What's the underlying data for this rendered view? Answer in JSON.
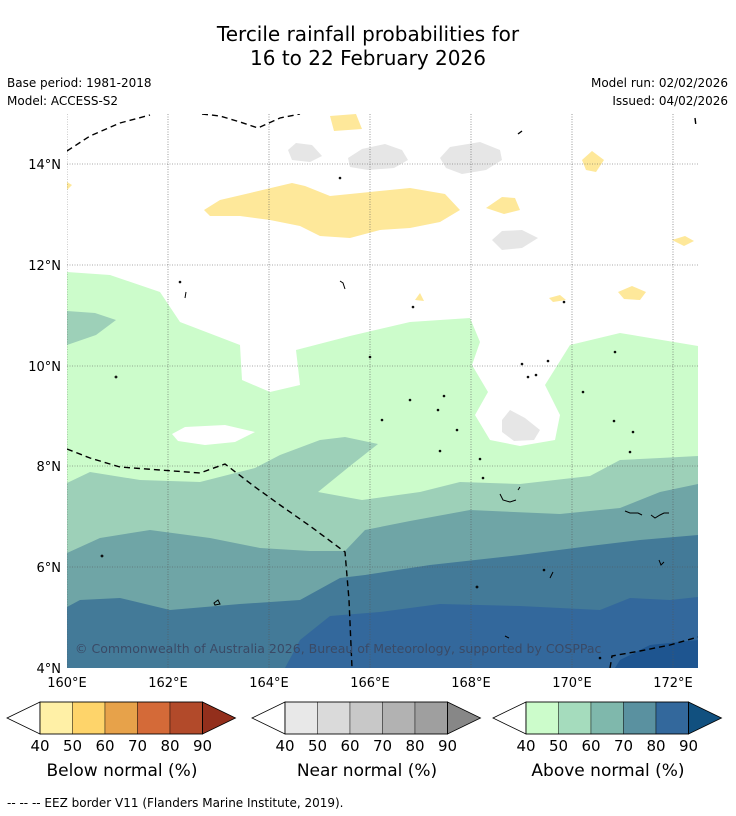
{
  "title": {
    "line1": "Tercile rainfall probabilities for",
    "line2": "16 to 22 February 2026"
  },
  "meta": {
    "base_period": "Base period: 1981-2018",
    "model": "Model: ACCESS-S2",
    "model_run": "Model run: 02/02/2026",
    "issued": "Issued: 04/02/2026"
  },
  "map": {
    "lat_labels": [
      "14°N",
      "12°N",
      "10°N",
      "8°N",
      "6°N",
      "4°N"
    ],
    "lon_labels": [
      "160°E",
      "162°E",
      "164°E",
      "166°E",
      "168°E",
      "170°E",
      "172°E"
    ],
    "copyright": "© Commonwealth of Australia 2026, Bureau of Meteorology, supported by COSPPac"
  },
  "legends": {
    "below": {
      "label": "Below normal (%)",
      "ticks": [
        "40",
        "50",
        "60",
        "70",
        "80",
        "90"
      ],
      "colors": [
        "#ffffff",
        "#fff0a6",
        "#fed46a",
        "#e7a24a",
        "#d46a38",
        "#b24a2a",
        "#932f1c"
      ]
    },
    "near": {
      "label": "Near normal (%)",
      "ticks": [
        "40",
        "50",
        "60",
        "70",
        "80",
        "90"
      ],
      "colors": [
        "#ffffff",
        "#e8e8e8",
        "#dadada",
        "#c8c8c8",
        "#b2b2b2",
        "#9f9f9f",
        "#878787"
      ]
    },
    "above": {
      "label": "Above normal (%)",
      "ticks": [
        "40",
        "50",
        "60",
        "70",
        "80",
        "90"
      ],
      "colors": [
        "#ffffff",
        "#ccfccb",
        "#a5dcbd",
        "#7fb8ac",
        "#5a91a0",
        "#33689c",
        "#11507f"
      ]
    }
  },
  "footnote": "--  --  -- EEZ border V11 (Flanders Marine Institute, 2019)."
}
